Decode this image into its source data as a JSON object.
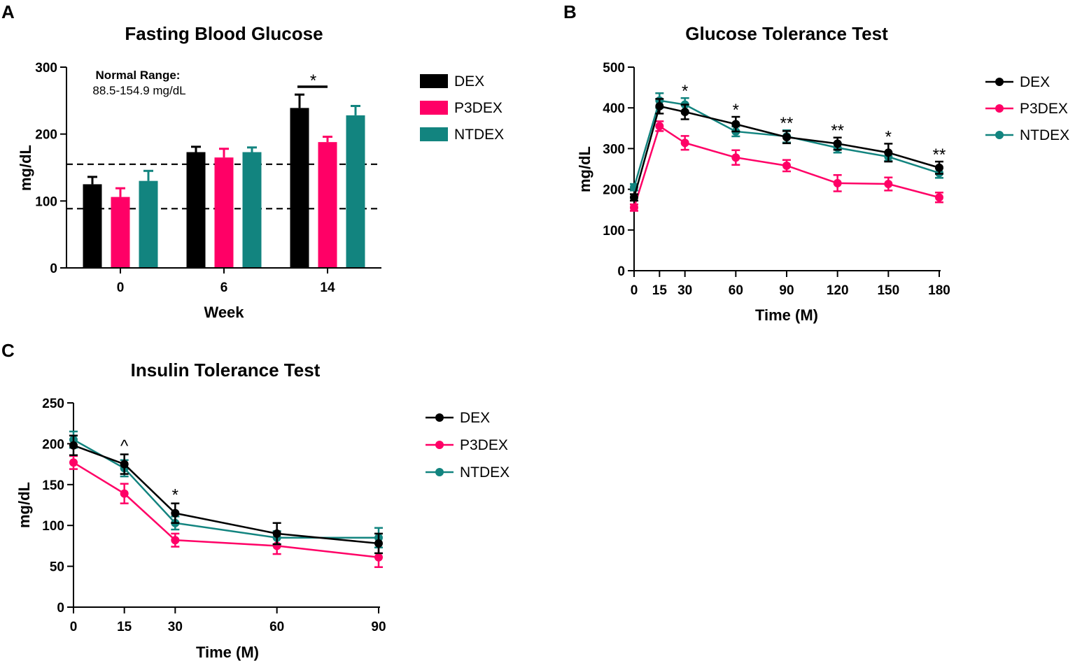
{
  "colors": {
    "DEX": "#000000",
    "P3DEX": "#ff0066",
    "NTDEX": "#12847f"
  },
  "chart_data": [
    {
      "id": "A",
      "panel_label": "A",
      "type": "bar",
      "title": "Fasting Blood Glucose",
      "xlabel": "Week",
      "ylabel": "mg/dL",
      "ylim": [
        0,
        300
      ],
      "yticks": [
        0,
        100,
        200,
        300
      ],
      "categories": [
        "0",
        "6",
        "14"
      ],
      "series": [
        {
          "name": "DEX",
          "values": [
            125,
            173,
            239
          ],
          "errors": [
            11,
            8,
            20
          ]
        },
        {
          "name": "P3DEX",
          "values": [
            106,
            165,
            188
          ],
          "errors": [
            13,
            13,
            8
          ]
        },
        {
          "name": "NTDEX",
          "values": [
            130,
            173,
            228
          ],
          "errors": [
            15,
            7,
            14
          ]
        }
      ],
      "reference_lines": [
        88.5,
        154.9
      ],
      "annotation_heading": "Normal Range:",
      "annotation_text": "88.5-154.9 mg/dL",
      "significance": [
        {
          "category": "14",
          "label": "*"
        }
      ],
      "legend": [
        "DEX",
        "P3DEX",
        "NTDEX"
      ]
    },
    {
      "id": "B",
      "panel_label": "B",
      "type": "line",
      "title": "Glucose Tolerance Test",
      "xlabel": "Time (M)",
      "ylabel": "mg/dL",
      "ylim": [
        0,
        500
      ],
      "xlim": [
        0,
        180
      ],
      "yticks": [
        0,
        100,
        200,
        300,
        400,
        500
      ],
      "x": [
        0,
        15,
        30,
        60,
        90,
        120,
        150,
        180
      ],
      "series": [
        {
          "name": "DEX",
          "values": [
            180,
            404,
            390,
            360,
            328,
            312,
            290,
            253
          ],
          "errors": [
            8,
            18,
            18,
            18,
            15,
            15,
            22,
            15
          ]
        },
        {
          "name": "P3DEX",
          "values": [
            155,
            355,
            314,
            278,
            258,
            215,
            213,
            180
          ],
          "errors": [
            8,
            12,
            17,
            18,
            14,
            20,
            16,
            12
          ]
        },
        {
          "name": "NTDEX",
          "values": [
            205,
            418,
            408,
            342,
            330,
            302,
            280,
            240
          ],
          "errors": [
            8,
            18,
            16,
            12,
            15,
            12,
            10,
            12
          ]
        }
      ],
      "significance": [
        {
          "x": 30,
          "label": "*"
        },
        {
          "x": 60,
          "label": "*"
        },
        {
          "x": 90,
          "label": "**"
        },
        {
          "x": 120,
          "label": "**"
        },
        {
          "x": 150,
          "label": "*"
        },
        {
          "x": 180,
          "label": "**"
        }
      ],
      "legend": [
        "DEX",
        "P3DEX",
        "NTDEX"
      ]
    },
    {
      "id": "C",
      "panel_label": "C",
      "type": "line",
      "title": "Insulin Tolerance Test",
      "xlabel": "Time (M)",
      "ylabel": "mg/dL",
      "ylim": [
        0,
        250
      ],
      "xlim": [
        0,
        90
      ],
      "yticks": [
        0,
        50,
        100,
        150,
        200,
        250
      ],
      "x": [
        0,
        15,
        30,
        60,
        90
      ],
      "series": [
        {
          "name": "DEX",
          "values": [
            198,
            175,
            115,
            90,
            78
          ],
          "errors": [
            12,
            12,
            12,
            13,
            12
          ]
        },
        {
          "name": "P3DEX",
          "values": [
            177,
            139,
            82,
            75,
            61
          ],
          "errors": [
            8,
            12,
            8,
            10,
            12
          ]
        },
        {
          "name": "NTDEX",
          "values": [
            205,
            170,
            103,
            85,
            85
          ],
          "errors": [
            10,
            10,
            8,
            8,
            12
          ]
        }
      ],
      "significance": [
        {
          "x": 15,
          "label": "^"
        },
        {
          "x": 30,
          "label": "*"
        }
      ],
      "legend": [
        "DEX",
        "P3DEX",
        "NTDEX"
      ]
    }
  ]
}
